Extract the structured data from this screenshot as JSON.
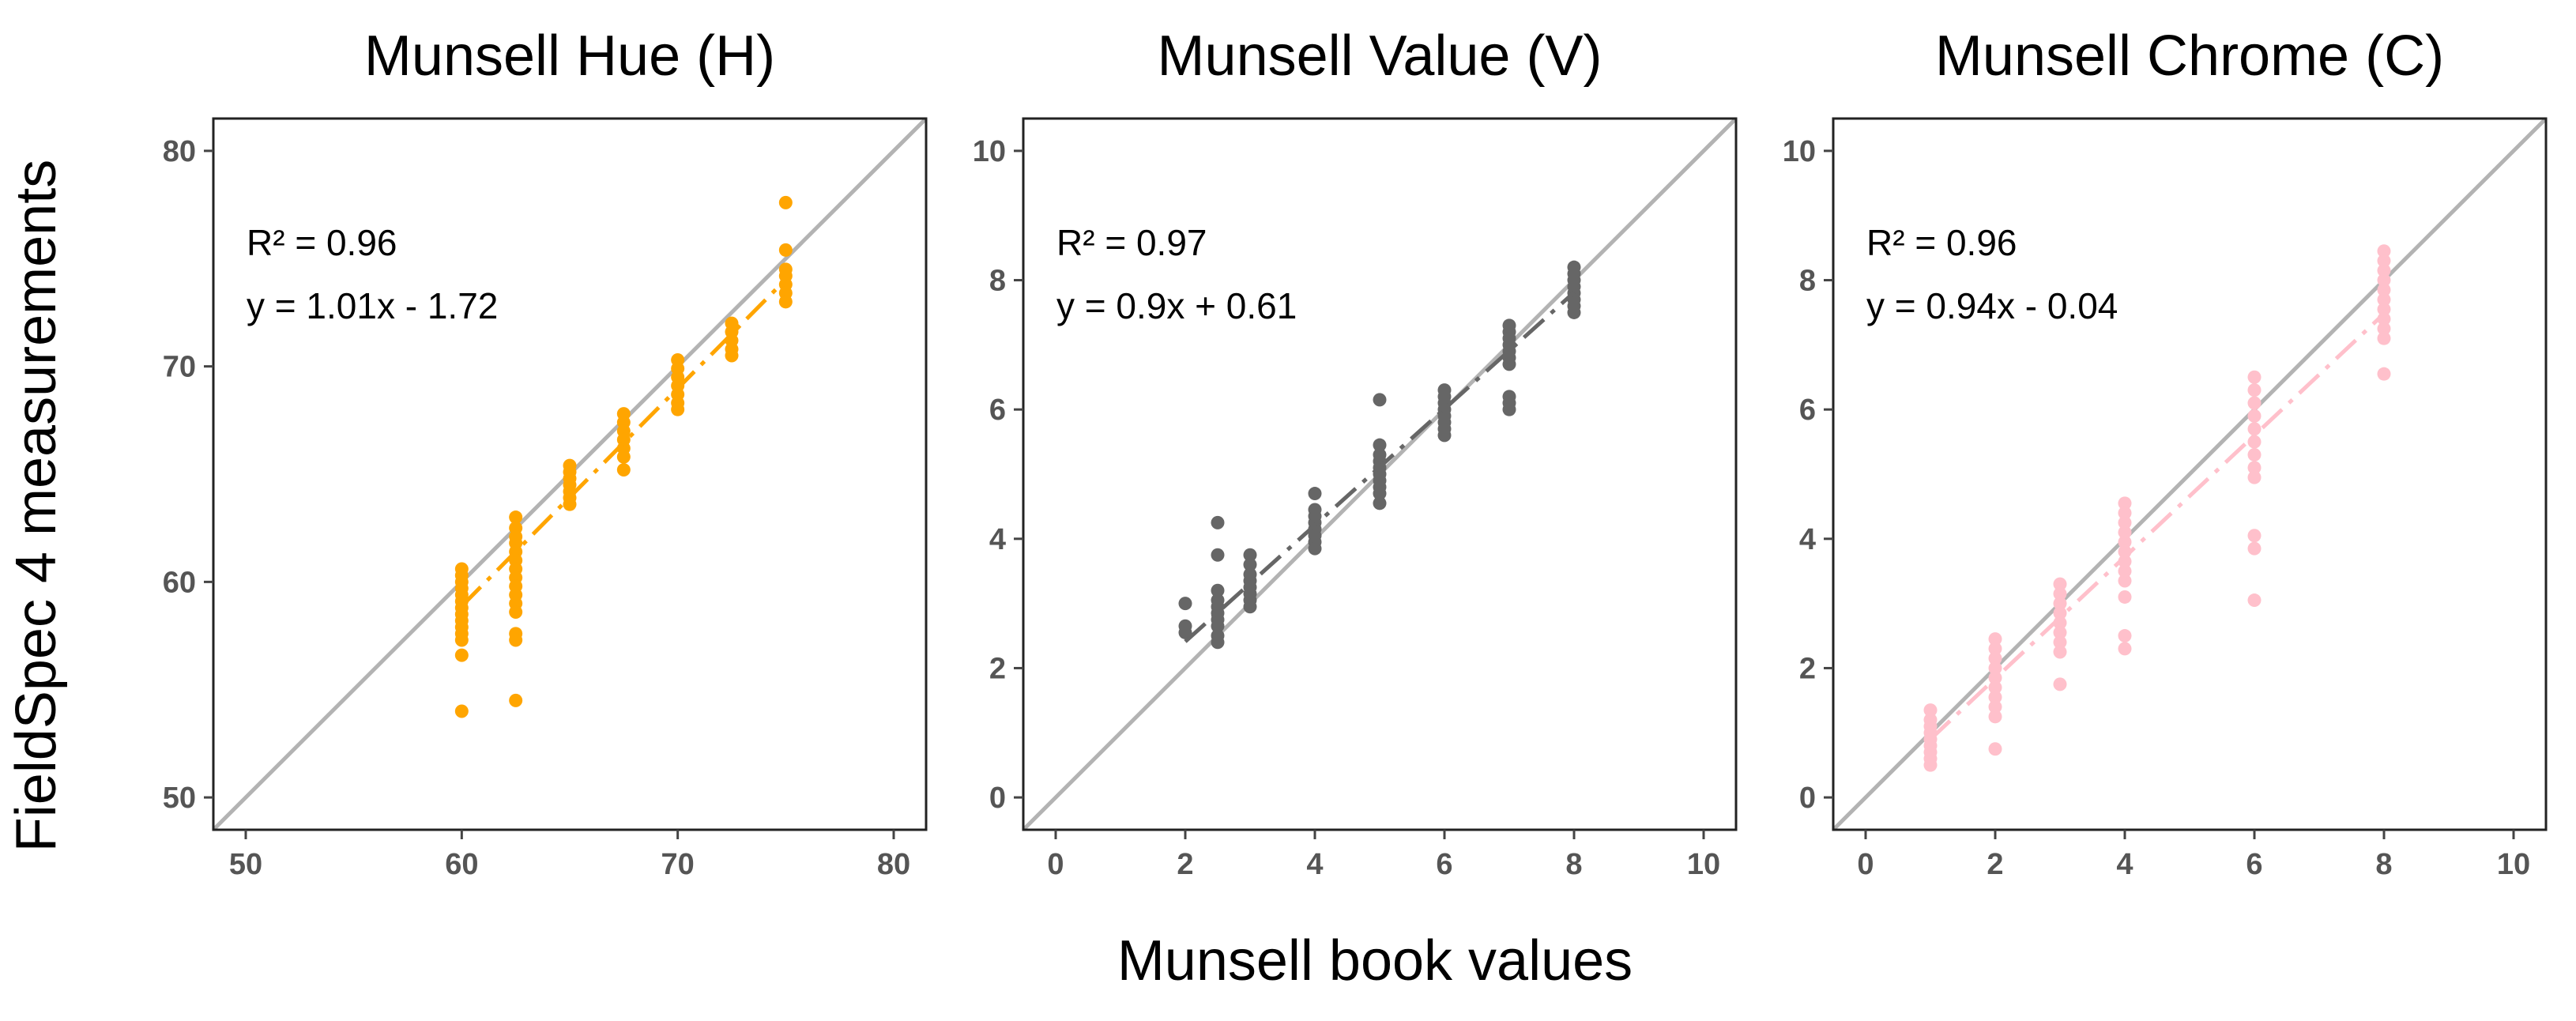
{
  "figure": {
    "ylabel": "FieldSpec 4 measurements",
    "xlabel": "Munsell book values"
  },
  "chart_data": [
    {
      "type": "scatter",
      "title": "Munsell Hue (H)",
      "xlim": [
        48.5,
        81.5
      ],
      "ylim": [
        48.5,
        81.5
      ],
      "xticks": [
        50,
        60,
        70,
        80
      ],
      "yticks": [
        50,
        60,
        70,
        80
      ],
      "color": "#FFA500",
      "r2_text": "R² = 0.96",
      "eq_text": "y = 1.01x - 1.72",
      "fit": {
        "slope": 1.01,
        "intercept": -1.72,
        "x_range": [
          60,
          75
        ]
      },
      "identity_line": true,
      "grid": false,
      "points": [
        [
          60,
          60.6
        ],
        [
          60,
          60.3
        ],
        [
          60,
          60.0
        ],
        [
          60,
          59.7
        ],
        [
          60,
          59.4
        ],
        [
          60,
          59.1
        ],
        [
          60,
          58.8
        ],
        [
          60,
          58.5
        ],
        [
          60,
          58.2
        ],
        [
          60,
          57.9
        ],
        [
          60,
          57.6
        ],
        [
          60,
          57.3
        ],
        [
          60,
          56.6
        ],
        [
          60,
          54.0
        ],
        [
          62.5,
          63.0
        ],
        [
          62.5,
          62.5
        ],
        [
          62.5,
          62.1
        ],
        [
          62.5,
          61.8
        ],
        [
          62.5,
          61.4
        ],
        [
          62.5,
          61.0
        ],
        [
          62.5,
          60.6
        ],
        [
          62.5,
          60.2
        ],
        [
          62.5,
          59.8
        ],
        [
          62.5,
          59.4
        ],
        [
          62.5,
          59.0
        ],
        [
          62.5,
          58.6
        ],
        [
          62.5,
          57.6
        ],
        [
          62.5,
          57.3
        ],
        [
          62.5,
          54.5
        ],
        [
          65,
          65.4
        ],
        [
          65,
          65.1
        ],
        [
          65,
          64.8
        ],
        [
          65,
          64.5
        ],
        [
          65,
          64.2
        ],
        [
          65,
          63.9
        ],
        [
          65,
          63.6
        ],
        [
          67.5,
          67.8
        ],
        [
          67.5,
          67.4
        ],
        [
          67.5,
          67.0
        ],
        [
          67.5,
          66.6
        ],
        [
          67.5,
          66.2
        ],
        [
          67.5,
          65.8
        ],
        [
          67.5,
          65.2
        ],
        [
          70,
          70.3
        ],
        [
          70,
          69.9
        ],
        [
          70,
          69.5
        ],
        [
          70,
          69.1
        ],
        [
          70,
          68.7
        ],
        [
          70,
          68.3
        ],
        [
          70,
          68.0
        ],
        [
          72.5,
          72.0
        ],
        [
          72.5,
          71.6
        ],
        [
          72.5,
          71.2
        ],
        [
          72.5,
          70.8
        ],
        [
          72.5,
          70.5
        ],
        [
          75,
          77.6
        ],
        [
          75,
          75.4
        ],
        [
          75,
          74.5
        ],
        [
          75,
          74.2
        ],
        [
          75,
          73.8
        ],
        [
          75,
          73.4
        ],
        [
          75,
          73.0
        ]
      ]
    },
    {
      "type": "scatter",
      "title": "Munsell Value (V)",
      "xlim": [
        -0.5,
        10.5
      ],
      "ylim": [
        -0.5,
        10.5
      ],
      "xticks": [
        0,
        2,
        4,
        6,
        8,
        10
      ],
      "yticks": [
        0,
        2,
        4,
        6,
        8,
        10
      ],
      "color": "#666666",
      "r2_text": "R² = 0.97",
      "eq_text": "y = 0.9x + 0.61",
      "fit": {
        "slope": 0.9,
        "intercept": 0.61,
        "x_range": [
          2,
          8
        ]
      },
      "identity_line": true,
      "grid": false,
      "points": [
        [
          2,
          3.0
        ],
        [
          2,
          2.65
        ],
        [
          2,
          2.55
        ],
        [
          2.5,
          4.25
        ],
        [
          2.5,
          3.75
        ],
        [
          2.5,
          3.2
        ],
        [
          2.5,
          3.05
        ],
        [
          2.5,
          2.95
        ],
        [
          2.5,
          2.85
        ],
        [
          2.5,
          2.75
        ],
        [
          2.5,
          2.65
        ],
        [
          2.5,
          2.5
        ],
        [
          2.5,
          2.4
        ],
        [
          3,
          3.75
        ],
        [
          3,
          3.6
        ],
        [
          3,
          3.45
        ],
        [
          3,
          3.35
        ],
        [
          3,
          3.25
        ],
        [
          3,
          3.15
        ],
        [
          3,
          3.05
        ],
        [
          3,
          2.95
        ],
        [
          4,
          4.7
        ],
        [
          4,
          4.45
        ],
        [
          4,
          4.35
        ],
        [
          4,
          4.25
        ],
        [
          4,
          4.15
        ],
        [
          4,
          4.05
        ],
        [
          4,
          3.95
        ],
        [
          4,
          3.85
        ],
        [
          5,
          6.15
        ],
        [
          5,
          5.45
        ],
        [
          5,
          5.3
        ],
        [
          5,
          5.2
        ],
        [
          5,
          5.1
        ],
        [
          5,
          5.0
        ],
        [
          5,
          4.9
        ],
        [
          5,
          4.8
        ],
        [
          5,
          4.7
        ],
        [
          5,
          4.55
        ],
        [
          6,
          6.3
        ],
        [
          6,
          6.2
        ],
        [
          6,
          6.1
        ],
        [
          6,
          6.0
        ],
        [
          6,
          5.9
        ],
        [
          6,
          5.8
        ],
        [
          6,
          5.7
        ],
        [
          6,
          5.6
        ],
        [
          7,
          7.3
        ],
        [
          7,
          7.2
        ],
        [
          7,
          7.1
        ],
        [
          7,
          7.0
        ],
        [
          7,
          6.9
        ],
        [
          7,
          6.8
        ],
        [
          7,
          6.7
        ],
        [
          7,
          6.2
        ],
        [
          7,
          6.1
        ],
        [
          7,
          6.0
        ],
        [
          8,
          8.2
        ],
        [
          8,
          8.1
        ],
        [
          8,
          8.0
        ],
        [
          8,
          7.9
        ],
        [
          8,
          7.8
        ],
        [
          8,
          7.7
        ],
        [
          8,
          7.6
        ],
        [
          8,
          7.5
        ]
      ]
    },
    {
      "type": "scatter",
      "title": "Munsell Chrome (C)",
      "xlim": [
        -0.5,
        10.5
      ],
      "ylim": [
        -0.5,
        10.5
      ],
      "xticks": [
        0,
        2,
        4,
        6,
        8,
        10
      ],
      "yticks": [
        0,
        2,
        4,
        6,
        8,
        10
      ],
      "color": "#FFC0CB",
      "r2_text": "R² = 0.96",
      "eq_text": "y = 0.94x - 0.04",
      "fit": {
        "slope": 0.94,
        "intercept": -0.04,
        "x_range": [
          1,
          8
        ]
      },
      "identity_line": true,
      "grid": false,
      "points": [
        [
          1,
          1.35
        ],
        [
          1,
          1.2
        ],
        [
          1,
          1.1
        ],
        [
          1,
          1.0
        ],
        [
          1,
          0.9
        ],
        [
          1,
          0.8
        ],
        [
          1,
          0.7
        ],
        [
          1,
          0.6
        ],
        [
          1,
          0.5
        ],
        [
          2,
          2.45
        ],
        [
          2,
          2.3
        ],
        [
          2,
          2.15
        ],
        [
          2,
          2.0
        ],
        [
          2,
          1.85
        ],
        [
          2,
          1.7
        ],
        [
          2,
          1.55
        ],
        [
          2,
          1.4
        ],
        [
          2,
          1.25
        ],
        [
          2,
          0.75
        ],
        [
          3,
          3.3
        ],
        [
          3,
          3.15
        ],
        [
          3,
          3.0
        ],
        [
          3,
          2.85
        ],
        [
          3,
          2.7
        ],
        [
          3,
          2.55
        ],
        [
          3,
          2.4
        ],
        [
          3,
          2.25
        ],
        [
          3,
          1.75
        ],
        [
          4,
          4.55
        ],
        [
          4,
          4.4
        ],
        [
          4,
          4.25
        ],
        [
          4,
          4.1
        ],
        [
          4,
          3.95
        ],
        [
          4,
          3.8
        ],
        [
          4,
          3.65
        ],
        [
          4,
          3.5
        ],
        [
          4,
          3.35
        ],
        [
          4,
          3.1
        ],
        [
          4,
          2.5
        ],
        [
          4,
          2.3
        ],
        [
          6,
          6.5
        ],
        [
          6,
          6.3
        ],
        [
          6,
          6.1
        ],
        [
          6,
          5.9
        ],
        [
          6,
          5.7
        ],
        [
          6,
          5.5
        ],
        [
          6,
          5.3
        ],
        [
          6,
          5.1
        ],
        [
          6,
          4.95
        ],
        [
          6,
          4.05
        ],
        [
          6,
          3.85
        ],
        [
          6,
          3.05
        ],
        [
          8,
          8.45
        ],
        [
          8,
          8.3
        ],
        [
          8,
          8.15
        ],
        [
          8,
          8.0
        ],
        [
          8,
          7.85
        ],
        [
          8,
          7.7
        ],
        [
          8,
          7.55
        ],
        [
          8,
          7.4
        ],
        [
          8,
          7.25
        ],
        [
          8,
          7.1
        ],
        [
          8,
          6.55
        ]
      ]
    }
  ]
}
